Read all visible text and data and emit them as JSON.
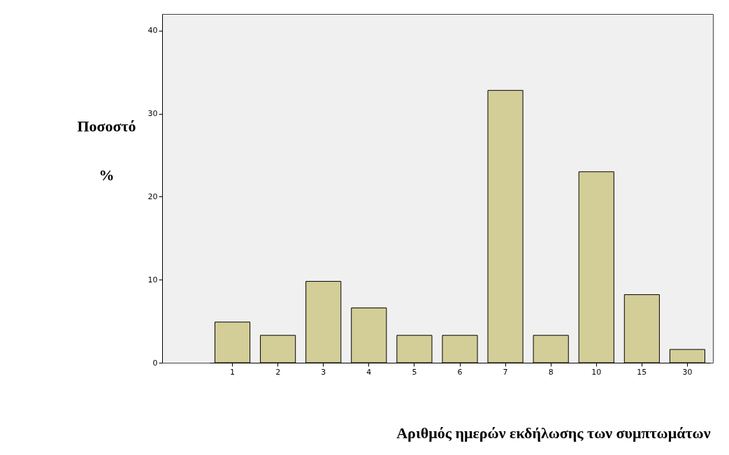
{
  "chart_data": {
    "type": "bar",
    "xlabel": "Αριθμός ημερών εκδήλωσης των συμπτωμάτων",
    "ylabel": "Ποσοστό %",
    "categories": [
      "1",
      "2",
      "3",
      "4",
      "5",
      "6",
      "7",
      "8",
      "10",
      "15",
      "30"
    ],
    "values": [
      4.9,
      3.3,
      9.8,
      6.6,
      3.3,
      3.3,
      32.8,
      3.3,
      23.0,
      8.2,
      1.6
    ],
    "color": "#d3ce97",
    "ylim": [
      0,
      42
    ],
    "yticks": [
      0,
      10,
      20,
      30,
      40
    ],
    "grid": false
  }
}
